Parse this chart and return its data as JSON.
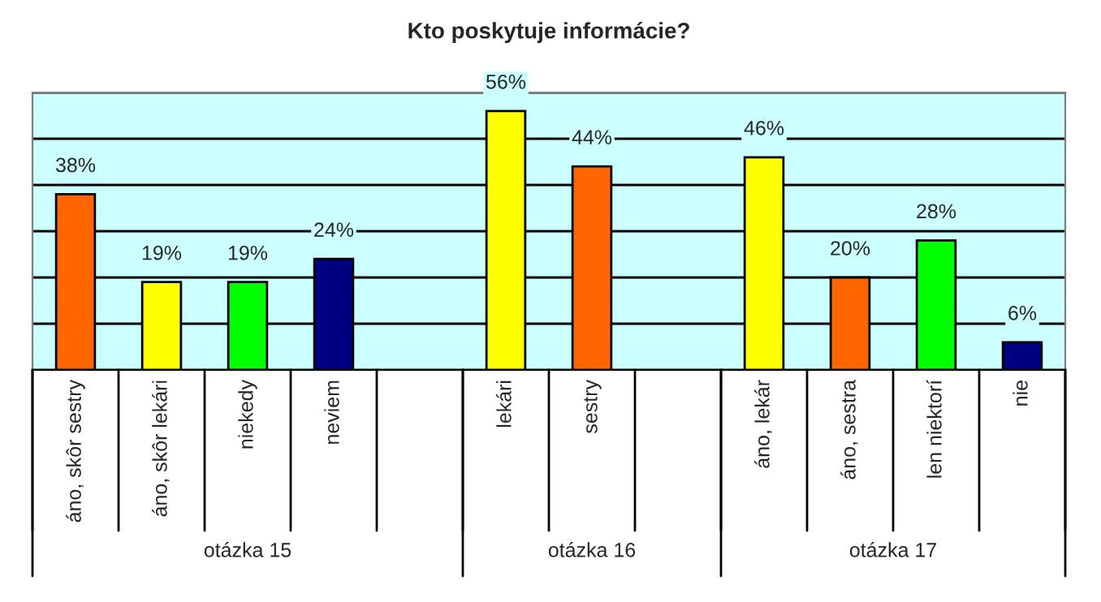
{
  "chart_data": {
    "type": "bar",
    "title": "Kto poskytuje informácie?",
    "categories": [
      "áno, skôr sestry",
      "áno, skôr lekári",
      "niekedy",
      "neviem",
      null,
      "lekári",
      "sestry",
      null,
      "áno, lekár",
      "áno, sestra",
      "len niektorí",
      "nie"
    ],
    "values": [
      38,
      19,
      19,
      24,
      null,
      56,
      44,
      null,
      46,
      20,
      28,
      6
    ],
    "colors": [
      "#ff6600",
      "#ffff00",
      "#00ff00",
      "#000080",
      null,
      "#ffff00",
      "#ff6600",
      null,
      "#ffff00",
      "#ff6600",
      "#00ff00",
      "#000080"
    ],
    "value_labels": [
      "38%",
      "19%",
      "19%",
      "24%",
      null,
      "56%",
      "44%",
      null,
      "46%",
      "20%",
      "28%",
      "6%"
    ],
    "ylim": [
      0,
      60
    ],
    "yticks": [
      {
        "value": 0,
        "label": null
      },
      {
        "value": 10,
        "label": null
      },
      {
        "value": 20,
        "label": null
      },
      {
        "value": 30,
        "label": null
      },
      {
        "value": 40,
        "label": null
      },
      {
        "value": 50,
        "label": null
      },
      {
        "value": 60,
        "label": null
      }
    ],
    "tick_labels": "x",
    "grid": "y",
    "legend": false,
    "annotations": [
      "otázka 15",
      "otázka 16",
      "otázka 17"
    ]
  }
}
